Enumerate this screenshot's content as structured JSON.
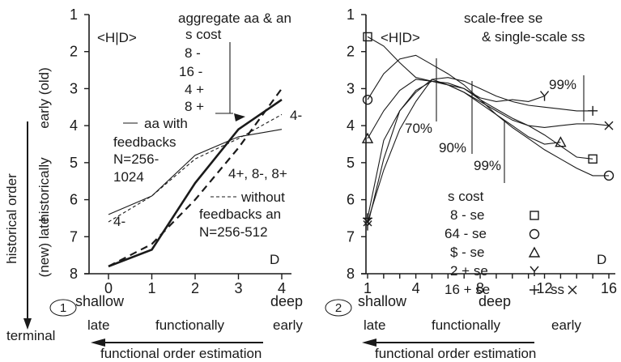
{
  "chart_data": [
    {
      "type": "line",
      "panel_label": "1",
      "top_left_label": "<H|D>",
      "corner_label": "D",
      "x_ticks": [
        "0",
        "1",
        "2",
        "3",
        "4"
      ],
      "x_end_labels": {
        "left": "shallow",
        "right": "deep"
      },
      "y_ticks": [
        "1",
        "2",
        "3",
        "4",
        "5",
        "6",
        "7",
        "8"
      ],
      "ylabel_top": "early (old)",
      "ylabel_mid": "historically",
      "ylabel_bottom": "(new) late",
      "xlim": [
        0,
        4.2
      ],
      "ylim": [
        1,
        8
      ],
      "legend_table": {
        "title": "aggregate aa & an",
        "header": "s  cost",
        "rows": [
          "8  -",
          "16  -",
          "4  +",
          "8  +"
        ]
      },
      "annotations": {
        "aa_line": "aa with",
        "aa_1": "feedbacks",
        "aa_2": "N=256-",
        "aa_3": "1024",
        "an_line": "without",
        "an_1": "feedbacks  an",
        "an_2": "N=256-512",
        "lbl_4minus_left": "4-",
        "lbl_4minus_right": "4-",
        "lbl_group": "4+, 8-, 8+"
      },
      "series": [
        {
          "style": "thin solid",
          "x": [
            0,
            1,
            2,
            3,
            4
          ],
          "y": [
            6.4,
            5.9,
            4.8,
            4.3,
            4.1
          ]
        },
        {
          "style": "thin dashed",
          "x": [
            0,
            1,
            2,
            3,
            4
          ],
          "y": [
            6.6,
            5.9,
            4.9,
            4.35,
            3.7
          ]
        },
        {
          "style": "thick solid",
          "x": [
            0,
            1,
            2,
            3,
            4
          ],
          "y": [
            7.8,
            7.35,
            5.55,
            4.1,
            3.3
          ]
        },
        {
          "style": "thick dashed",
          "x": [
            0,
            1,
            2,
            3,
            4
          ],
          "y": [
            7.8,
            7.2,
            6.0,
            4.6,
            3.0
          ]
        }
      ]
    },
    {
      "type": "line",
      "panel_label": "2",
      "top_left_label": "<H|D>",
      "corner_label": "D",
      "x_ticks": [
        "1",
        "4",
        "8",
        "12",
        "16"
      ],
      "x_mid_label": "deep",
      "x_left_label": "shallow",
      "y_ticks": [
        "1",
        "2",
        "3",
        "4",
        "5",
        "6",
        "7",
        "8"
      ],
      "xlim": [
        1,
        16
      ],
      "ylim": [
        1,
        8
      ],
      "title_1": "scale-free se",
      "title_2": "& single-scale ss",
      "percent_labels": [
        "70%",
        "90%",
        "99%",
        "99%"
      ],
      "legend": {
        "title": "s  cost",
        "rows": [
          "8  - se",
          "64  - se",
          "$  - se",
          "2 + se",
          "16 + se"
        ],
        "ss_label": "ss"
      },
      "series": [
        {
          "marker": "square",
          "x": [
            1,
            2,
            3,
            4,
            5,
            6,
            7,
            8,
            9,
            10,
            11,
            12,
            13,
            14,
            15
          ],
          "y": [
            1.6,
            1.85,
            2.3,
            2.7,
            2.8,
            2.9,
            3.0,
            3.3,
            3.55,
            3.8,
            4.0,
            4.25,
            4.55,
            4.85,
            4.9
          ]
        },
        {
          "marker": "circle",
          "x": [
            1,
            2,
            3,
            4,
            5,
            6,
            7,
            8,
            9,
            10,
            11,
            12,
            13,
            14,
            15,
            16
          ],
          "y": [
            3.3,
            2.6,
            2.2,
            2.1,
            2.35,
            2.6,
            2.9,
            3.3,
            3.7,
            4.05,
            4.35,
            4.65,
            4.9,
            5.15,
            5.35,
            5.35
          ]
        },
        {
          "marker": "triangle",
          "x": [
            1,
            2,
            3,
            4,
            5,
            6,
            7,
            8,
            9,
            10,
            11,
            12,
            13
          ],
          "y": [
            4.35,
            3.6,
            3.05,
            2.75,
            2.8,
            2.9,
            3.1,
            3.4,
            3.7,
            4.0,
            4.3,
            4.5,
            4.45
          ]
        },
        {
          "marker": "Y",
          "x": [
            1,
            2,
            3,
            4,
            5,
            6,
            7,
            8,
            9,
            10,
            11,
            12
          ],
          "y": [
            6.7,
            4.9,
            3.6,
            3.05,
            2.8,
            2.85,
            3.0,
            3.25,
            3.35,
            3.3,
            3.35,
            3.2
          ]
        },
        {
          "marker": "plus",
          "x": [
            1,
            2,
            3,
            4,
            5,
            6,
            7,
            8,
            9,
            10,
            11,
            12,
            13,
            14,
            15
          ],
          "y": [
            6.5,
            4.4,
            3.6,
            3.1,
            2.75,
            2.7,
            2.8,
            3.0,
            3.2,
            3.35,
            3.45,
            3.5,
            3.55,
            3.6,
            3.6
          ]
        },
        {
          "marker": "x",
          "x": [
            1,
            2,
            3,
            4,
            5,
            6,
            7,
            8,
            9,
            10,
            11,
            12,
            13,
            14,
            15,
            16
          ],
          "y": [
            6.6,
            5.2,
            4.1,
            3.35,
            2.75,
            2.9,
            3.1,
            3.35,
            3.6,
            3.85,
            4.0,
            4.05,
            4.0,
            3.95,
            3.95,
            4.0
          ]
        }
      ]
    }
  ],
  "left_axis_label": "historical order",
  "terminal_label": "terminal",
  "bottom1": {
    "late": "late",
    "functionally": "functionally",
    "early": "early",
    "caption": "functional order estimation"
  },
  "bottom2": {
    "late": "late",
    "functionally": "functionally",
    "early": "early",
    "caption": "functional order estimation"
  }
}
